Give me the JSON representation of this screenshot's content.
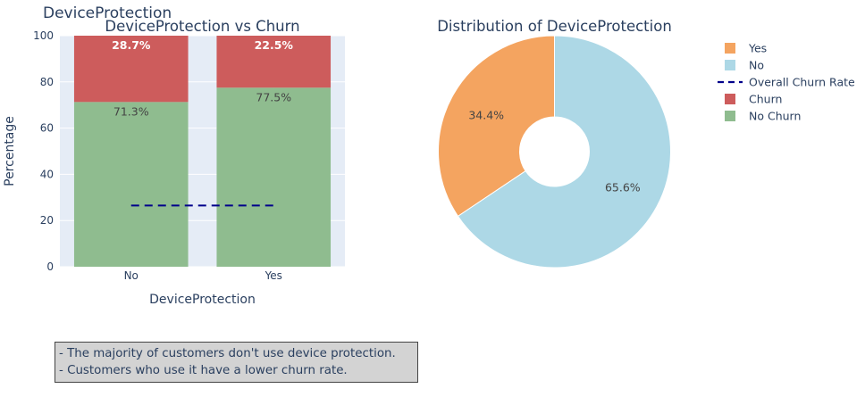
{
  "figure_title": "DeviceProtection",
  "colors": {
    "plot_bg": "#e5ecf6",
    "churn": "#cd5c5c",
    "no_churn": "#8fbc8f",
    "overall_line": "#00008b",
    "pie_yes": "#f4a460",
    "pie_no": "#add8e6",
    "text": "#2a3f5f"
  },
  "legend": [
    {
      "label": "Yes",
      "kind": "square",
      "color": "#f4a460"
    },
    {
      "label": "No",
      "kind": "square",
      "color": "#add8e6"
    },
    {
      "label": "Overall Churn Rate",
      "kind": "dash",
      "color": "#00008b"
    },
    {
      "label": "Churn",
      "kind": "square",
      "color": "#cd5c5c"
    },
    {
      "label": "No Churn",
      "kind": "square",
      "color": "#8fbc8f"
    }
  ],
  "note_lines": [
    "- The majority of customers don't use device protection.",
    "- Customers who use it have a lower churn rate."
  ],
  "chart_data": [
    {
      "type": "bar",
      "stacked": true,
      "title": "DeviceProtection vs Churn",
      "xlabel": "DeviceProtection",
      "ylabel": "Percentage",
      "categories": [
        "No",
        "Yes"
      ],
      "ylim": [
        0,
        100
      ],
      "yticks": [
        0,
        20,
        40,
        60,
        80,
        100
      ],
      "series": [
        {
          "name": "No Churn",
          "values": [
            71.3,
            77.5
          ],
          "labels": [
            "71.3%",
            "77.5%"
          ]
        },
        {
          "name": "Churn",
          "values": [
            28.7,
            22.5
          ],
          "labels": [
            "28.7%",
            "22.5%"
          ]
        }
      ],
      "reference_line": {
        "name": "Overall Churn Rate",
        "value": 26.5
      },
      "grid": true
    },
    {
      "type": "pie",
      "donut": true,
      "title": "Distribution of DeviceProtection",
      "labels": [
        "Yes",
        "No"
      ],
      "values": [
        34.4,
        65.6
      ],
      "value_labels": [
        "34.4%",
        "65.6%"
      ]
    }
  ]
}
